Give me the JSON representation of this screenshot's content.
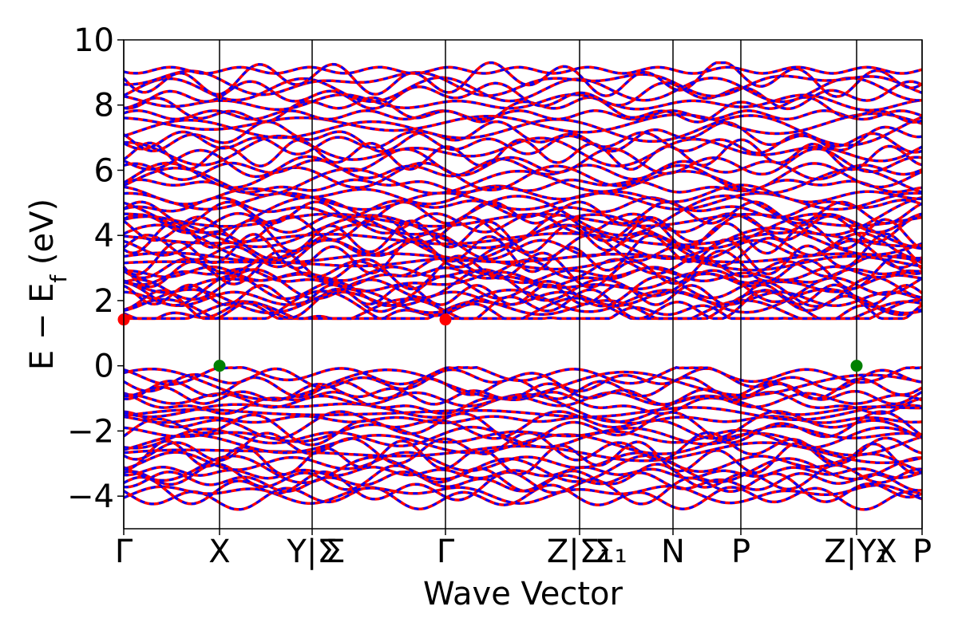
{
  "chart_data": {
    "type": "line",
    "title": "",
    "xlabel": "Wave Vector",
    "ylabel": "E − E",
    "ylabel_subscript": "f",
    "ylabel_unit": "(eV)",
    "ylim": [
      -5,
      10
    ],
    "yticks": [
      -4,
      -2,
      0,
      2,
      4,
      6,
      8,
      10
    ],
    "ytick_labels": [
      "−4",
      "−2",
      "0",
      "2",
      "4",
      "6",
      "8",
      "10"
    ],
    "xlim": [
      0,
      1
    ],
    "kpoint_positions": [
      0,
      0.12,
      0.236,
      0.403,
      0.571,
      0.688,
      0.773,
      0.918,
      1.0
    ],
    "kpoint_labels": [
      {
        "pos": 0,
        "label": "Γ"
      },
      {
        "pos": 0.12,
        "label": "X"
      },
      {
        "pos": 0.236,
        "label": "Y|Σ"
      },
      {
        "pos": 0.265,
        "label": "Σ"
      },
      {
        "pos": 0.403,
        "label": "Γ"
      },
      {
        "pos": 0.571,
        "label": "Z|Σ₁"
      },
      {
        "pos": 0.61,
        "label": "Σ₁"
      },
      {
        "pos": 0.688,
        "label": "N"
      },
      {
        "pos": 0.773,
        "label": "P"
      },
      {
        "pos": 0.918,
        "label": "Z|Y₁"
      },
      {
        "pos": 0.955,
        "label": "X"
      },
      {
        "pos": 1.0,
        "label": "P"
      }
    ],
    "series": [
      {
        "color": "#ff0000",
        "style": "solid"
      },
      {
        "color": "#0000ff",
        "style": "dashed"
      }
    ],
    "markers": [
      {
        "x": 0,
        "y": 1.42,
        "color": "#ff0000"
      },
      {
        "x": 0.403,
        "y": 1.42,
        "color": "#ff0000"
      },
      {
        "x": 0.12,
        "y": 0.0,
        "color": "#008000"
      },
      {
        "x": 0.918,
        "y": 0.0,
        "color": "#008000"
      }
    ],
    "conduction_band_min": 1.42,
    "valence_band_max": 0.0,
    "grid": false
  }
}
